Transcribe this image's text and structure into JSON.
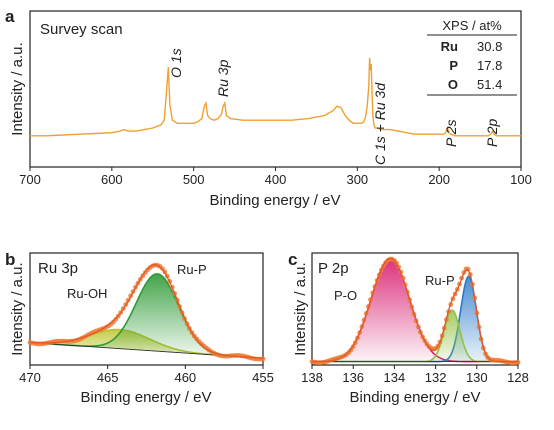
{
  "chart_data": [
    {
      "type": "line",
      "panel": "a",
      "title": "Survey scan",
      "xlabel": "Binding energy / eV",
      "ylabel": "Intensity / a.u.",
      "xlim": [
        700,
        100
      ],
      "x_reversed": true,
      "xticks": [
        700,
        600,
        500,
        400,
        300,
        200,
        100
      ],
      "ylim": [
        0,
        100
      ],
      "color": "#f0a030",
      "series": [
        {
          "x": [
            700,
            680,
            660,
            640,
            620,
            600,
            590,
            585,
            580,
            570,
            560,
            550,
            545,
            540,
            536,
            533,
            531,
            529,
            526,
            520,
            510,
            500,
            495,
            490,
            487,
            485,
            483,
            480,
            475,
            470,
            466,
            464,
            462,
            460,
            455,
            440,
            420,
            400,
            380,
            360,
            350,
            340,
            330,
            325,
            320,
            315,
            310,
            305,
            300,
            295,
            292,
            290,
            288,
            286,
            285,
            284,
            283,
            282,
            281,
            280,
            279,
            278,
            276,
            270,
            260,
            250,
            240,
            230,
            220,
            210,
            200,
            195,
            192,
            190,
            188,
            186,
            180,
            170,
            160,
            150,
            140,
            137,
            135,
            133,
            130,
            120,
            110,
            100
          ],
          "y": [
            20,
            20,
            20.5,
            21,
            21.5,
            22,
            23,
            24,
            23,
            23,
            24,
            25,
            26,
            27,
            30,
            50,
            64,
            40,
            30,
            28,
            28,
            28,
            29,
            31,
            39,
            41,
            33,
            31,
            30,
            31,
            34,
            39,
            41,
            33,
            31,
            30,
            30,
            30,
            30,
            31,
            32,
            33,
            36,
            39,
            38,
            33,
            30,
            28,
            28,
            28,
            29,
            32,
            39,
            52,
            70,
            62,
            66,
            46,
            33,
            28,
            26,
            25,
            25,
            24,
            24,
            23,
            22,
            21,
            21,
            21,
            21,
            21,
            22,
            25,
            22,
            21,
            20,
            20,
            20,
            20,
            20,
            21,
            23,
            21,
            20,
            20,
            20,
            20
          ]
        }
      ],
      "peak_labels": [
        "O 1s",
        "Ru 3p",
        "C 1s + Ru 3d",
        "P 2s",
        "P 2p"
      ],
      "table": {
        "header": "XPS / at%",
        "rows": [
          {
            "element": "Ru",
            "value": "30.8"
          },
          {
            "element": "P",
            "value": "17.8"
          },
          {
            "element": "O",
            "value": "51.4"
          }
        ]
      }
    },
    {
      "type": "area",
      "panel": "b",
      "title": "Ru 3p",
      "xlabel": "Binding energy / eV",
      "ylabel": "Intensity / a.u.",
      "xlim": [
        470,
        455
      ],
      "x_reversed": true,
      "xticks": [
        470,
        465,
        460,
        455
      ],
      "ylim": [
        0,
        100
      ],
      "baseline": {
        "x": [
          470,
          455
        ],
        "y": [
          20,
          6
        ]
      },
      "components": [
        {
          "name": "Ru-P",
          "center": 461.8,
          "height": 69,
          "fwhm": 3.2,
          "color": "#2e9a35"
        },
        {
          "name": "Ru-OH",
          "center": 464.2,
          "height": 17,
          "fwhm": 4.5,
          "color": "#b5c435"
        }
      ],
      "data_color": "#ee7d35",
      "fit_color": "#e05a2a"
    },
    {
      "type": "area",
      "panel": "c",
      "title": "P 2p",
      "xlabel": "Binding energy / eV",
      "ylabel": "Intensity / a.u.",
      "xlim": [
        138,
        128
      ],
      "x_reversed": true,
      "xticks": [
        138,
        136,
        134,
        132,
        130,
        128
      ],
      "ylim": [
        0,
        100
      ],
      "baseline": {
        "x": [
          138,
          128
        ],
        "y": [
          3,
          3
        ]
      },
      "components": [
        {
          "name": "P-O",
          "center": 134.2,
          "height": 92,
          "fwhm": 2.2,
          "color": "#d81b6f"
        },
        {
          "name": "Ru-P",
          "center": 130.4,
          "height": 76,
          "fwhm": 0.9,
          "color": "#2a7ac9"
        },
        {
          "name": "",
          "center": 131.2,
          "height": 46,
          "fwhm": 0.9,
          "color": "#92c246"
        }
      ],
      "data_color": "#ee7d35",
      "fit_color": "#e05a2a"
    }
  ]
}
